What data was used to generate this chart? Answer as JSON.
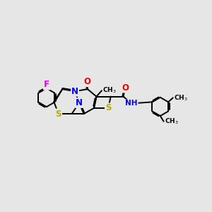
{
  "background_color": "#e6e6e6",
  "atom_colors": {
    "F": "#ee00ee",
    "N": "#0000ee",
    "O": "#ee0000",
    "S": "#bbaa00",
    "C": "#000000",
    "H": "#008888"
  },
  "bond_lw": 1.4,
  "font_size": 8.5,
  "figsize": [
    3.0,
    3.0
  ],
  "dpi": 100,
  "xlim": [
    -3.8,
    4.0
  ],
  "ylim": [
    -1.2,
    2.8
  ]
}
